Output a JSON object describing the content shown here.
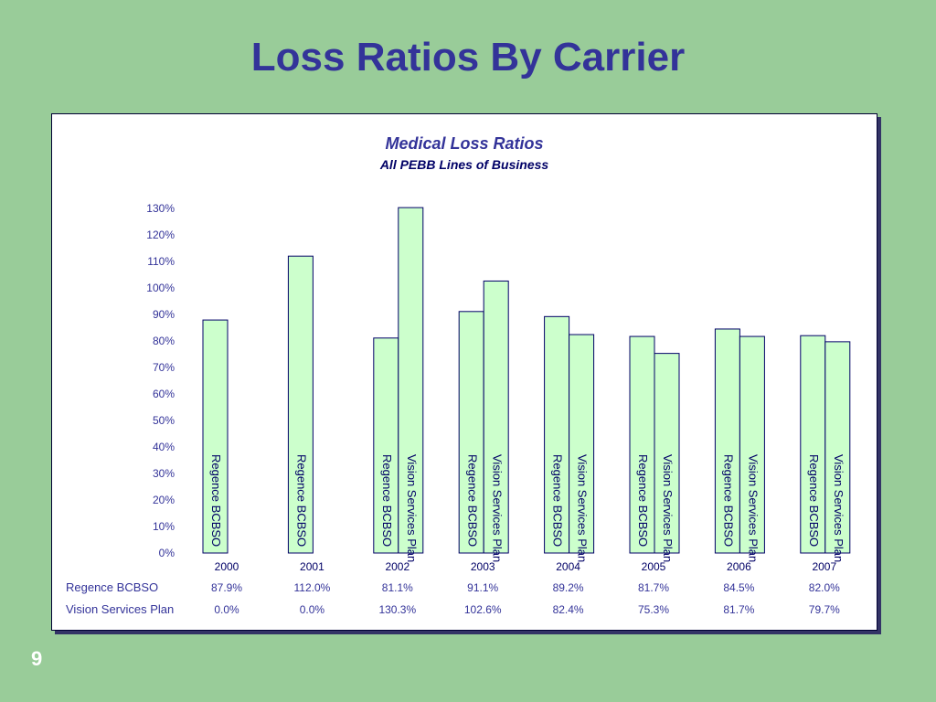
{
  "slide": {
    "title": "Loss Ratios By Carrier",
    "page_number": "9"
  },
  "colors": {
    "background": "#99cc99",
    "title": "#333399",
    "bar_fill": "#ccffcc",
    "bar_stroke": "#000066",
    "bar_label": "#000066",
    "text": "#333399"
  },
  "chart_data": {
    "type": "bar",
    "title": "Medical Loss Ratios",
    "subtitle": "All PEBB Lines of Business",
    "categories": [
      "2000",
      "2001",
      "2002",
      "2003",
      "2004",
      "2005",
      "2006",
      "2007"
    ],
    "y_ticks": [
      "0%",
      "10%",
      "20%",
      "30%",
      "40%",
      "50%",
      "60%",
      "70%",
      "80%",
      "90%",
      "100%",
      "110%",
      "120%",
      "130%"
    ],
    "ylim": [
      0,
      130
    ],
    "grid": false,
    "series": [
      {
        "name": "Regence BCBSO",
        "values": [
          87.9,
          112.0,
          81.1,
          91.1,
          89.2,
          81.7,
          84.5,
          82.0
        ],
        "labels": [
          "87.9%",
          "112.0%",
          "81.1%",
          "91.1%",
          "89.2%",
          "81.7%",
          "84.5%",
          "82.0%"
        ]
      },
      {
        "name": "Vision Services Plan",
        "values": [
          0.0,
          0.0,
          130.3,
          102.6,
          82.4,
          75.3,
          81.7,
          79.7
        ],
        "labels": [
          "0.0%",
          "0.0%",
          "130.3%",
          "102.6%",
          "82.4%",
          "75.3%",
          "81.7%",
          "79.7%"
        ]
      }
    ]
  }
}
